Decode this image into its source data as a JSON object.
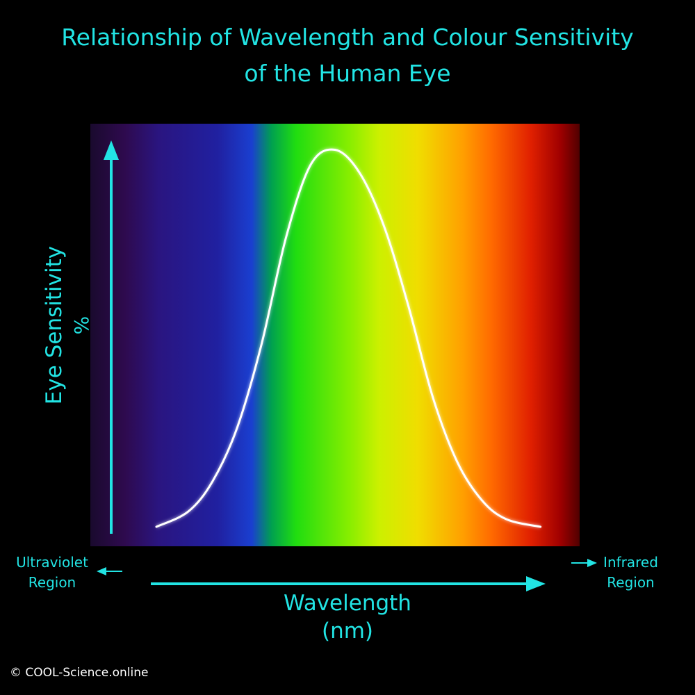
{
  "theme": {
    "background": "#000000",
    "accent": "#22e4e4",
    "curve": "#ffffff"
  },
  "title": {
    "line1": "Relationship of Wavelength and Colour Sensitivity",
    "line2": "of the Human Eye"
  },
  "axis": {
    "y_label": "Eye Sensitivity",
    "y_unit": "%",
    "x_label": "Wavelength",
    "x_unit": "(nm)"
  },
  "regions": {
    "uv": {
      "line1": "Ultraviolet",
      "line2": "Region"
    },
    "ir": {
      "line1": "Infrared",
      "line2": "Region"
    }
  },
  "copyright": "© COOL-Science.online",
  "chart_data": {
    "type": "line",
    "title": "Relationship of Wavelength and Colour Sensitivity of the Human Eye",
    "xlabel": "Wavelength (nm)",
    "ylabel": "Eye Sensitivity %",
    "x_tick_labels": [],
    "y_tick_labels": [],
    "grid": false,
    "legend": "none",
    "xlim": [
      0,
      100
    ],
    "ylim": [
      0,
      100
    ],
    "x": [
      13.5,
      20,
      25,
      30,
      35,
      40,
      45,
      50,
      55,
      60,
      65,
      70,
      75,
      80,
      85,
      92
    ],
    "y": [
      0,
      4,
      12,
      26,
      48,
      76,
      95,
      99,
      93,
      79,
      58,
      34,
      17,
      7,
      2,
      0
    ],
    "spectrum_colors": [
      "#1a0a2e",
      "#2e0a4e",
      "#2a1580",
      "#2020a0",
      "#1a3fd0",
      "#00a050",
      "#20dd10",
      "#88ee00",
      "#ccf000",
      "#f0dd00",
      "#ffa000",
      "#ff6a00",
      "#e02000",
      "#a00000",
      "#500000"
    ]
  }
}
